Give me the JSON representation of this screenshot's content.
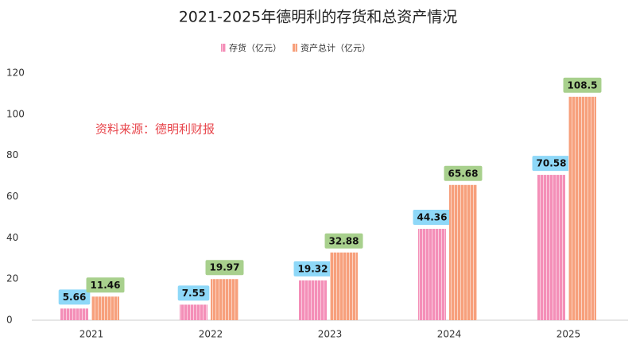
{
  "chart_data": {
    "type": "bar",
    "title": "2021-2025年德明利的存货和总资产情况",
    "annotation": "资料来源：德明利财报",
    "categories": [
      "2021",
      "2022",
      "2023",
      "2024",
      "2025"
    ],
    "series": [
      {
        "name": "存货（亿元）",
        "color": "#f48fb8",
        "label_color": "#8ed8f8",
        "values": [
          5.66,
          7.55,
          19.32,
          44.36,
          70.58
        ]
      },
      {
        "name": "资产总计（亿元）",
        "color": "#f7a07c",
        "label_color": "#a8d08d",
        "values": [
          11.46,
          19.97,
          32.88,
          65.68,
          108.5
        ]
      }
    ],
    "ylim": [
      0,
      120
    ],
    "yticks": [
      0,
      20,
      40,
      60,
      80,
      100,
      120
    ],
    "grid": false,
    "legend": "top"
  }
}
